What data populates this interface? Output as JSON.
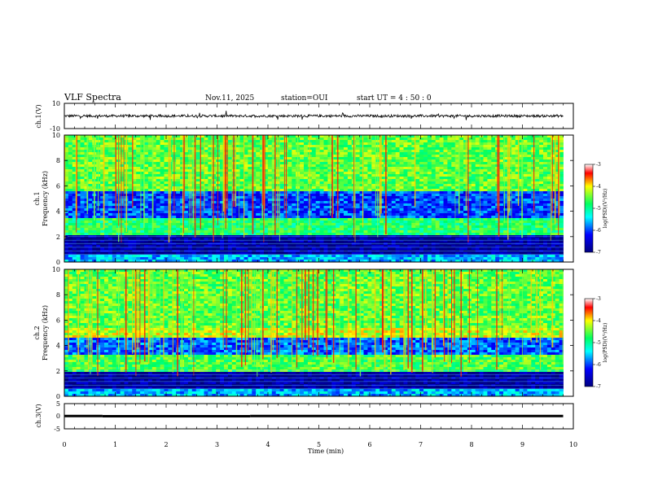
{
  "header": {
    "title": "VLF Spectra",
    "date": "Nov.11, 2025",
    "station": "station=OUI",
    "start": "start UT =  4 : 50 : 0"
  },
  "colors": {
    "spectrogram_low": "#00008b",
    "spectrogram_mid": "#00ff80",
    "spectrogram_high": "#ff0000",
    "trace": "#000000"
  },
  "chart_data": [
    {
      "type": "line",
      "panel": "ch1-waveform",
      "ylabel": "ch.1(V)",
      "ylim": [
        -10,
        10
      ],
      "yticks": [
        "10",
        "-10"
      ],
      "xlim": [
        0,
        10
      ],
      "baseline": 0
    },
    {
      "type": "heatmap",
      "panel": "ch1-spectrogram",
      "ylabel": "ch.1\nFrequency (kHz)",
      "ylabel_lines": [
        "ch.1",
        "Frequency (kHz)"
      ],
      "ylim": [
        0,
        10
      ],
      "yticks": [
        "0",
        "2",
        "4",
        "6",
        "8",
        "10"
      ],
      "xlim": [
        0,
        9.8
      ],
      "bands_khz": [
        {
          "from": 0.0,
          "to": 0.5,
          "level": 0.35
        },
        {
          "from": 0.5,
          "to": 2.2,
          "level": 0.05
        },
        {
          "from": 2.2,
          "to": 3.5,
          "level": 0.55
        },
        {
          "from": 3.5,
          "to": 5.5,
          "level": 0.25
        },
        {
          "from": 5.5,
          "to": 10.0,
          "level": 0.62
        }
      ],
      "colorbar": {
        "label": "log(PSD)(V²/Hz)",
        "min": -7,
        "max": -3,
        "ticks": [
          "-3",
          "-4",
          "-5",
          "-6",
          "-7"
        ]
      }
    },
    {
      "type": "heatmap",
      "panel": "ch2-spectrogram",
      "ylabel": "ch.2\nFrequency (kHz)",
      "ylabel_lines": [
        "ch.2",
        "Frequency (kHz)"
      ],
      "ylim": [
        0,
        10
      ],
      "yticks": [
        "0",
        "2",
        "4",
        "6",
        "8",
        "10"
      ],
      "xlim": [
        0,
        9.8
      ],
      "bands_khz": [
        {
          "from": 0.0,
          "to": 0.5,
          "level": 0.35
        },
        {
          "from": 0.5,
          "to": 2.0,
          "level": 0.05
        },
        {
          "from": 2.0,
          "to": 3.2,
          "level": 0.6
        },
        {
          "from": 3.2,
          "to": 4.6,
          "level": 0.28
        },
        {
          "from": 4.6,
          "to": 5.4,
          "level": 0.7
        },
        {
          "from": 5.4,
          "to": 10.0,
          "level": 0.62
        }
      ],
      "colorbar": {
        "label": "log(PSD)(V²/Hz)",
        "min": -7,
        "max": -3,
        "ticks": [
          "-3",
          "-4",
          "-5",
          "-6",
          "-7"
        ]
      }
    },
    {
      "type": "line",
      "panel": "ch3-waveform",
      "ylabel": "ch.3(V)",
      "ylim": [
        -5,
        5
      ],
      "yticks": [
        "5",
        "0",
        "-5"
      ],
      "xlim": [
        0,
        10
      ],
      "segments": [
        {
          "x0": 0.0,
          "x1": 0.75,
          "y": 0.1
        },
        {
          "x0": 0.75,
          "x1": 3.65,
          "y": 0.0
        },
        {
          "x0": 3.65,
          "x1": 9.8,
          "y": 0.1
        }
      ]
    }
  ],
  "xaxis": {
    "label": "Time (min)",
    "ticks": [
      "0",
      "1",
      "2",
      "3",
      "4",
      "5",
      "6",
      "7",
      "8",
      "9",
      "10"
    ]
  }
}
